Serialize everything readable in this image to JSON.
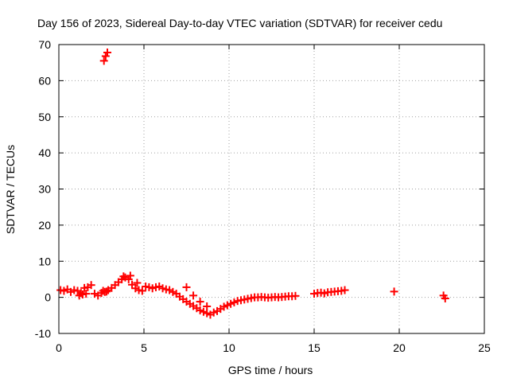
{
  "chart_data": {
    "type": "scatter",
    "title": "Day 156 of 2023, Sidereal Day-to-day VTEC variation (SDTVAR) for receiver cedu",
    "xlabel": "GPS time / hours",
    "ylabel": "SDTVAR / TECUs",
    "xlim": [
      0,
      25
    ],
    "ylim": [
      -10,
      70
    ],
    "xticks": [
      0,
      5,
      10,
      15,
      20,
      25
    ],
    "yticks": [
      -10,
      0,
      10,
      20,
      30,
      40,
      50,
      60,
      70
    ],
    "grid": true,
    "marker": "plus",
    "series": [
      {
        "name": "SDTVAR",
        "color": "#ff0000",
        "x": [
          0.1,
          0.3,
          0.5,
          0.7,
          0.9,
          1.1,
          1.3,
          1.5,
          1.7,
          1.9,
          2.1,
          2.3,
          2.5,
          2.6,
          2.7,
          2.8,
          2.9,
          3.1,
          3.3,
          3.5,
          3.7,
          3.9,
          4.1,
          4.3,
          4.5,
          4.7,
          4.9,
          5.1,
          5.3,
          5.5,
          5.7,
          5.9,
          6.1,
          6.3,
          6.5,
          6.7,
          6.9,
          7.1,
          7.3,
          7.5,
          7.7,
          7.9,
          8.1,
          8.3,
          8.5,
          8.7,
          8.9,
          9.1,
          9.3,
          9.5,
          9.7,
          9.9,
          10.1,
          10.3,
          10.5,
          10.7,
          10.9,
          11.1,
          11.3,
          11.5,
          11.7,
          11.9,
          12.1,
          12.3,
          12.5,
          12.7,
          12.9,
          13.1,
          13.3,
          13.5,
          13.7,
          13.9,
          15.0,
          15.2,
          15.4,
          15.6,
          15.8,
          16.0,
          16.2,
          16.4,
          16.6,
          16.8,
          19.7,
          22.6,
          22.7,
          2.65,
          2.75,
          2.85,
          1.2,
          1.4,
          1.6,
          7.5,
          7.9,
          8.3,
          8.7,
          4.2,
          4.6,
          3.8
        ],
        "y": [
          2.0,
          1.8,
          2.2,
          1.5,
          2.0,
          1.8,
          1.2,
          2.6,
          2.8,
          3.4,
          1.0,
          0.5,
          1.2,
          1.8,
          1.5,
          1.6,
          2.0,
          2.6,
          3.4,
          4.2,
          5.0,
          5.5,
          5.0,
          3.5,
          2.5,
          2.0,
          1.8,
          3.0,
          2.8,
          2.5,
          2.8,
          3.0,
          2.5,
          2.2,
          2.0,
          1.5,
          1.0,
          0.2,
          -0.5,
          -1.2,
          -1.8,
          -2.4,
          -3.0,
          -3.6,
          -4.0,
          -4.4,
          -4.8,
          -4.2,
          -3.8,
          -3.2,
          -2.6,
          -2.2,
          -1.8,
          -1.4,
          -1.0,
          -0.8,
          -0.6,
          -0.4,
          -0.2,
          0.0,
          0.0,
          0.1,
          0.0,
          -0.1,
          0.0,
          0.1,
          0.0,
          0.1,
          0.2,
          0.3,
          0.3,
          0.4,
          1.0,
          1.2,
          1.3,
          1.1,
          1.4,
          1.5,
          1.6,
          1.7,
          1.8,
          2.0,
          1.6,
          0.5,
          -0.3,
          65.5,
          66.8,
          67.8,
          0.5,
          0.8,
          1.0,
          2.8,
          0.5,
          -1.2,
          -2.5,
          6.0,
          4.0,
          5.8
        ]
      }
    ]
  }
}
